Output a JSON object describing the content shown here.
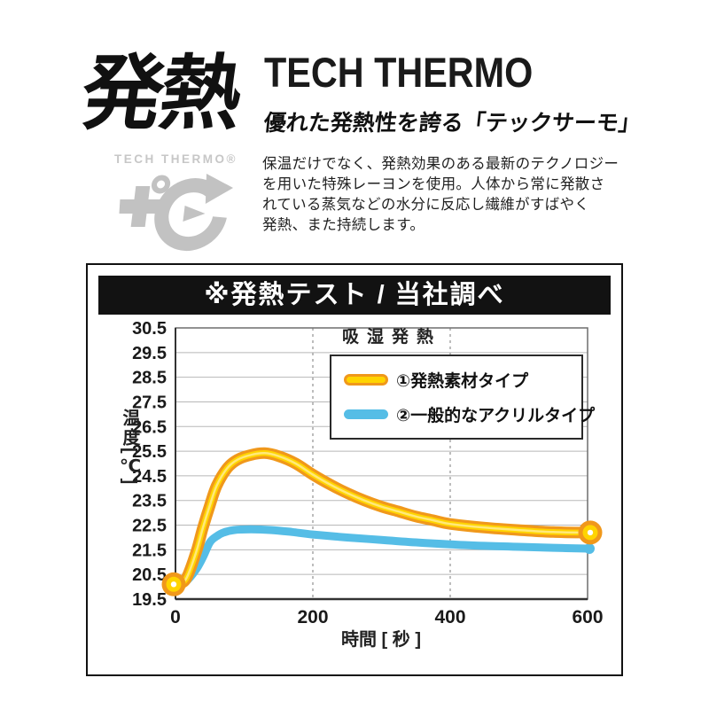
{
  "header": {
    "big_title": "発熱",
    "brand_title": "TECH THERMO",
    "subtitle": "優れた発熱性を誇る「テックサーモ」",
    "logo_text": "TECH THERMO®",
    "logo_mark_icon": "plus-degree-c-arrow-logo",
    "description": "保温だけでなく、発熱効果のある最新のテクノロジー\nを用いた特殊レーヨンを使用。人体から常に発散さ\nれている蒸気などの水分に反応し繊維がすばやく\n発熱、また持続します。"
  },
  "chart_data": {
    "type": "line",
    "title": "※発熱テスト / 当社調べ",
    "annotation": "吸湿発熱",
    "xlabel": "時間 [ 秒 ]",
    "ylabel": "温度[℃]",
    "xlim": [
      0,
      600
    ],
    "ylim": [
      19.5,
      30.5
    ],
    "x_ticks": [
      0,
      200,
      400,
      600
    ],
    "y_ticks": [
      30.5,
      29.5,
      28.5,
      27.5,
      26.5,
      25.5,
      24.5,
      23.5,
      22.5,
      21.5,
      20.5,
      19.5
    ],
    "grid": {
      "horizontal": true,
      "vertical_dashed_x": [
        200,
        400
      ]
    },
    "legend_position": "top-right-inside",
    "colors": {
      "grid": "#b8b8b8",
      "frame": "#6e6e6e",
      "axis": "#333333",
      "title_bar_bg": "#121212",
      "title_bar_text": "#ffffff"
    },
    "series": [
      {
        "name": "①発熱素材タイプ",
        "colors": {
          "outer": "#f0981b",
          "inner": "#ffd400",
          "core": "#ffe97a"
        },
        "marker": "donut-start-end",
        "points": [
          [
            0,
            20.1
          ],
          [
            15,
            20.3
          ],
          [
            30,
            21.4
          ],
          [
            40,
            22.4
          ],
          [
            50,
            23.3
          ],
          [
            60,
            24.1
          ],
          [
            75,
            24.8
          ],
          [
            90,
            25.15
          ],
          [
            110,
            25.35
          ],
          [
            130,
            25.42
          ],
          [
            150,
            25.3
          ],
          [
            175,
            25.0
          ],
          [
            200,
            24.55
          ],
          [
            225,
            24.15
          ],
          [
            250,
            23.8
          ],
          [
            275,
            23.5
          ],
          [
            300,
            23.25
          ],
          [
            325,
            23.05
          ],
          [
            350,
            22.85
          ],
          [
            375,
            22.7
          ],
          [
            400,
            22.55
          ],
          [
            450,
            22.4
          ],
          [
            500,
            22.3
          ],
          [
            550,
            22.22
          ],
          [
            600,
            22.2
          ]
        ]
      },
      {
        "name": "②一般的なアクリルタイプ",
        "colors": {
          "line": "#55bde6"
        },
        "marker": "round-end",
        "points": [
          [
            0,
            20.0
          ],
          [
            15,
            20.2
          ],
          [
            30,
            20.7
          ],
          [
            40,
            21.2
          ],
          [
            50,
            21.8
          ],
          [
            60,
            22.05
          ],
          [
            70,
            22.2
          ],
          [
            85,
            22.3
          ],
          [
            110,
            22.33
          ],
          [
            140,
            22.3
          ],
          [
            170,
            22.22
          ],
          [
            200,
            22.12
          ],
          [
            250,
            22.0
          ],
          [
            300,
            21.9
          ],
          [
            350,
            21.8
          ],
          [
            400,
            21.72
          ],
          [
            450,
            21.66
          ],
          [
            500,
            21.62
          ],
          [
            550,
            21.58
          ],
          [
            600,
            21.55
          ]
        ]
      }
    ]
  }
}
